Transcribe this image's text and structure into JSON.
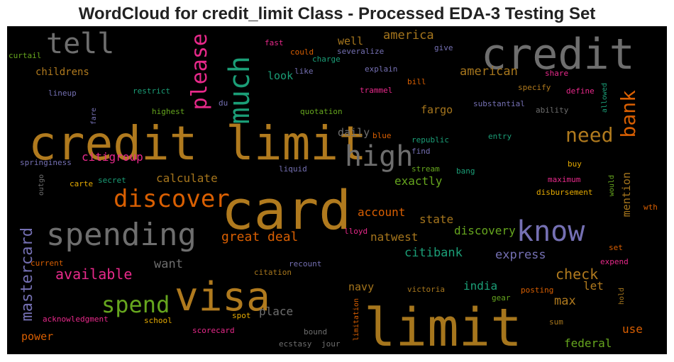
{
  "title": "WordCloud for credit_limit Class - Processed EDA-3 Testing Set",
  "colors": {
    "background": "#000000",
    "ochre": "#b07a1e",
    "gray": "#6e6e6e",
    "teal": "#1b9e77",
    "orange": "#d95f02",
    "purple": "#7570b3",
    "pink": "#e7298a",
    "green": "#66a61e",
    "gold": "#e6ab02",
    "brown": "#a6761d"
  },
  "words": [
    "credit limit",
    "card",
    "limit",
    "credit",
    "visa",
    "know",
    "spending",
    "high",
    "much",
    "tell",
    "please",
    "discover",
    "spend",
    "bank",
    "need",
    "mastercard",
    "great deal",
    "available",
    "check",
    "american",
    "america",
    "citigroup",
    "calculate",
    "exactly",
    "account",
    "state",
    "discovery",
    "citibank",
    "express",
    "natwest",
    "fargo",
    "daily",
    "india",
    "navy",
    "max",
    "federal",
    "use",
    "power",
    "place",
    "want",
    "well",
    "let",
    "mention",
    "childrens",
    "lineup",
    "restrict",
    "highest",
    "quotation",
    "substantial",
    "ability",
    "allowed",
    "define",
    "specify",
    "share",
    "bill",
    "trammel",
    "explain",
    "severalize",
    "charge",
    "give",
    "fast",
    "could",
    "like",
    "look",
    "curtail",
    "du",
    "fare",
    "blue",
    "republic",
    "entry",
    "find",
    "springiness",
    "secret",
    "liquid",
    "bang",
    "stream",
    "buy",
    "maximum",
    "would",
    "disbursement",
    "outgo",
    "carte",
    "lloyd",
    "current",
    "citation",
    "recount",
    "set",
    "expend",
    "wth",
    "acknowledgment",
    "spot",
    "school",
    "victoria",
    "posting",
    "gear",
    "hold",
    "sum",
    "scorecard",
    "bound",
    "ecstasy",
    "jour",
    "limitation"
  ]
}
